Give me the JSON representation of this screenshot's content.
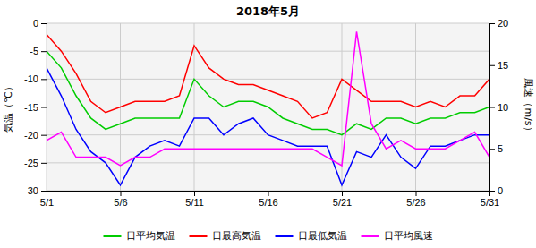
{
  "chart_data": {
    "type": "line",
    "title": "2018年5月",
    "x": [
      1,
      2,
      3,
      4,
      5,
      6,
      7,
      8,
      9,
      10,
      11,
      12,
      13,
      14,
      15,
      16,
      17,
      18,
      19,
      20,
      21,
      22,
      23,
      24,
      25,
      26,
      27,
      28,
      29,
      30,
      31
    ],
    "xlim": [
      1,
      31
    ],
    "xticks": [
      {
        "value": 1,
        "label": "5/1"
      },
      {
        "value": 6,
        "label": "5/6"
      },
      {
        "value": 11,
        "label": "5/11"
      },
      {
        "value": 16,
        "label": "5/16"
      },
      {
        "value": 21,
        "label": "5/21"
      },
      {
        "value": 26,
        "label": "5/26"
      },
      {
        "value": 31,
        "label": "5/31"
      }
    ],
    "ylim": [
      -30,
      0
    ],
    "yticks": [
      0,
      -5,
      -10,
      -15,
      -20,
      -25,
      -30
    ],
    "y2lim": [
      0,
      20
    ],
    "y2ticks": [
      0,
      5,
      10,
      15,
      20
    ],
    "ylabel": "気温（℃）",
    "y2label": "風速（m/s）",
    "grid": true,
    "legend": "bottom",
    "series": [
      {
        "name": "日平均気温",
        "color": "#00cc00",
        "values": [
          -5,
          -8,
          -13,
          -17,
          -19,
          -18,
          -17,
          -17,
          -17,
          -17,
          -10,
          -13,
          -15,
          -14,
          -14,
          -15,
          -17,
          -18,
          -19,
          -19,
          -20,
          -18,
          -19,
          -17,
          -17,
          -18,
          -17,
          -17,
          -16,
          -16,
          -15
        ]
      },
      {
        "name": "日最高気温",
        "color": "#ff0000",
        "values": [
          -2,
          -5,
          -9,
          -14,
          -16,
          -15,
          -14,
          -14,
          -14,
          -13,
          -4,
          -8,
          -10,
          -11,
          -11,
          -12,
          -13,
          -14,
          -17,
          -16,
          -10,
          -12,
          -14,
          -14,
          -14,
          -15,
          -14,
          -15,
          -13,
          -13,
          -10
        ]
      },
      {
        "name": "日最低気温",
        "color": "#0000ff",
        "values": [
          -8,
          -13,
          -19,
          -23,
          -25,
          -29,
          -24,
          -22,
          -21,
          -22,
          -17,
          -17,
          -20,
          -18,
          -17,
          -20,
          -21,
          -22,
          -22,
          -22,
          -29,
          -23,
          -24,
          -20,
          -24,
          -26,
          -22,
          -22,
          -21,
          -20,
          -20
        ]
      },
      {
        "name": "日平均風速",
        "color": "#ff00ff",
        "axis": "y2",
        "values": [
          6,
          7,
          4,
          4,
          4,
          3,
          4,
          4,
          5,
          5,
          5,
          5,
          5,
          5,
          5,
          5,
          5,
          5,
          5,
          4,
          3,
          19,
          8,
          5,
          6,
          5,
          5,
          5,
          6,
          7,
          4
        ]
      }
    ]
  }
}
